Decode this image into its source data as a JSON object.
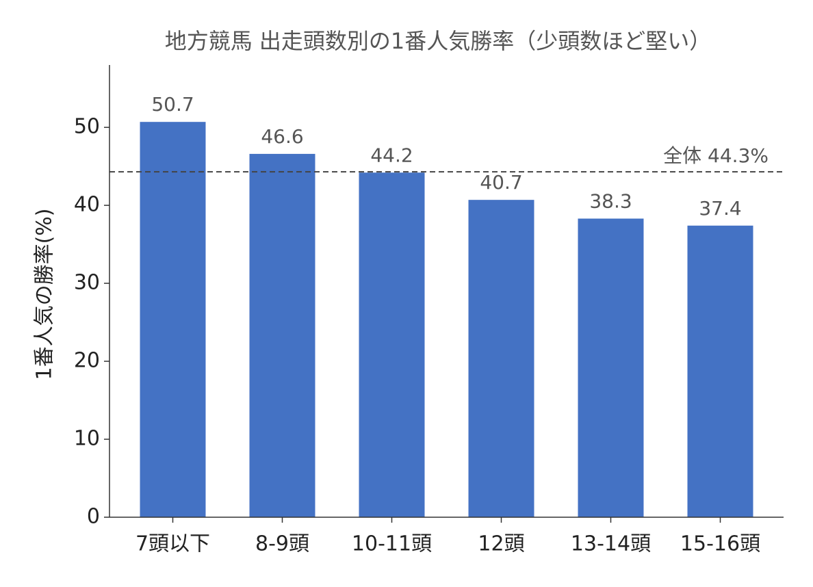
{
  "chart_data": {
    "type": "bar",
    "title": "地方競馬 出走頭数別の1番人気勝率（少頭数ほど堅い）",
    "y_label": "1番人気の勝率(%)",
    "categories": [
      "7頭以下",
      "8-9頭",
      "10-11頭",
      "12頭",
      "13-14頭",
      "15-16頭"
    ],
    "values": [
      50.7,
      46.6,
      44.2,
      40.7,
      38.3,
      37.4
    ],
    "color": "#4472c4",
    "ylim": [
      0,
      58
    ],
    "yticks": [
      0,
      10,
      20,
      30,
      40,
      50
    ],
    "grid": false,
    "reference_line": {
      "value": 44.3,
      "label": "全体 44.3%"
    }
  }
}
